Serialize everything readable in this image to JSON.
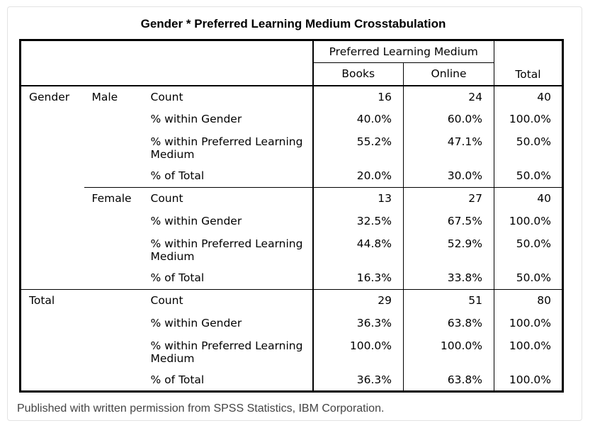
{
  "title": "Gender * Preferred Learning Medium Crosstabulation",
  "header": {
    "group": "Preferred Learning Medium",
    "cols": [
      "Books",
      "Online"
    ],
    "total": "Total"
  },
  "groups": [
    {
      "label": "Gender",
      "sub": "Male",
      "rows": [
        {
          "stat": "Count",
          "vals": [
            "16",
            "24",
            "40"
          ]
        },
        {
          "stat": "% within Gender",
          "vals": [
            "40.0%",
            "60.0%",
            "100.0%"
          ]
        },
        {
          "stat": "% within Preferred Learning Medium",
          "vals": [
            "55.2%",
            "47.1%",
            "50.0%"
          ]
        },
        {
          "stat": "% of Total",
          "vals": [
            "20.0%",
            "30.0%",
            "50.0%"
          ]
        }
      ]
    },
    {
      "label": "",
      "sub": "Female",
      "rows": [
        {
          "stat": "Count",
          "vals": [
            "13",
            "27",
            "40"
          ]
        },
        {
          "stat": "% within Gender",
          "vals": [
            "32.5%",
            "67.5%",
            "100.0%"
          ]
        },
        {
          "stat": "% within Preferred Learning Medium",
          "vals": [
            "44.8%",
            "52.9%",
            "50.0%"
          ]
        },
        {
          "stat": "% of Total",
          "vals": [
            "16.3%",
            "33.8%",
            "50.0%"
          ]
        }
      ]
    },
    {
      "label": "Total",
      "sub": "",
      "rows": [
        {
          "stat": "Count",
          "vals": [
            "29",
            "51",
            "80"
          ]
        },
        {
          "stat": "% within Gender",
          "vals": [
            "36.3%",
            "63.8%",
            "100.0%"
          ]
        },
        {
          "stat": "% within Preferred Learning Medium",
          "vals": [
            "100.0%",
            "100.0%",
            "100.0%"
          ]
        },
        {
          "stat": "% of Total",
          "vals": [
            "36.3%",
            "63.8%",
            "100.0%"
          ]
        }
      ]
    }
  ],
  "caption": "Published with written permission from SPSS Statistics, IBM Corporation."
}
